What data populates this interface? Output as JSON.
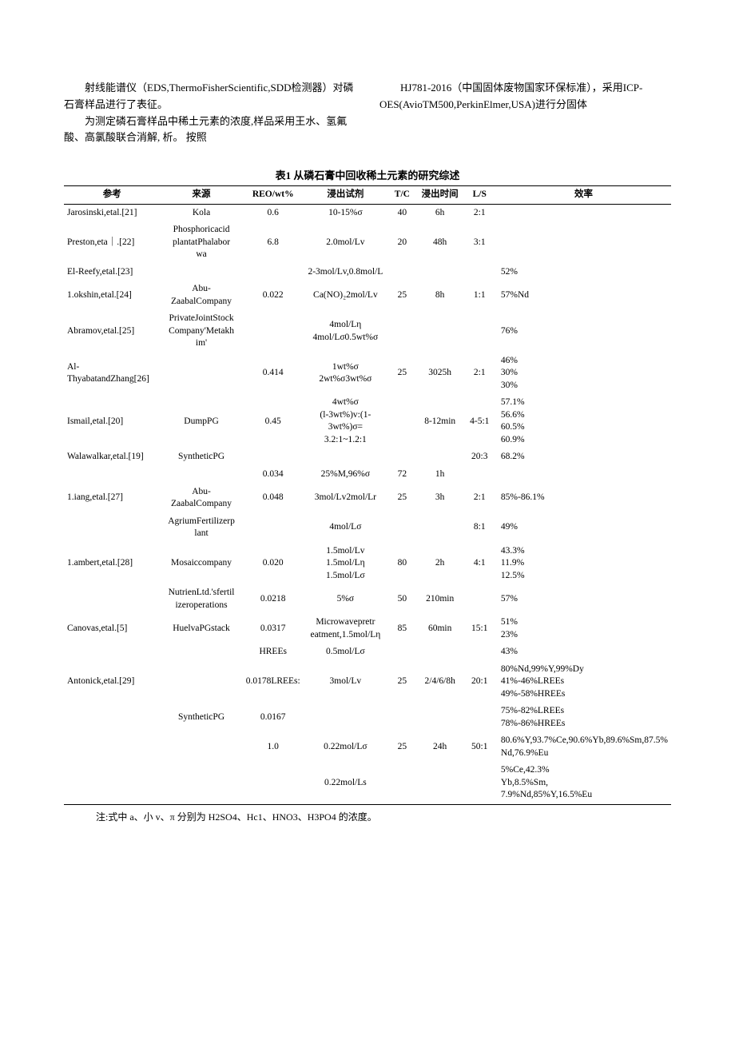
{
  "paragraph_col1_a": "射线能谱仪（EDS,ThermoFisherScientific,SDD检测器）对磷石膏样品进行了表征。",
  "paragraph_col1_b": "为测定磷石膏样品中稀土元素的浓度,样品采用王水、氢氟酸、高氯酸联合消解,",
  "paragraph_col2_a": "HJ781-2016（中国固体废物国家环保标准），采用ICP-OES(AvioTM500,PerkinElmer,USA)进行分固体",
  "paragraph_col1_tail": "析。",
  "paragraph_col1_tail2": "按照",
  "table_caption": "表1 从磷石膏中回收稀土元素的研究综述",
  "headers": [
    "参考",
    "来源",
    "REO/wt%",
    "浸出试剂",
    "T/C",
    "浸出时间",
    "L/S",
    "效率"
  ],
  "rows": [
    {
      "ref": "Jarosinski,etal.[21]",
      "src": "Kola",
      "reo": "0.6",
      "reagent": "10-15%σ",
      "tc": "40",
      "time": "6h",
      "ls": "2:1",
      "eff": ""
    },
    {
      "ref": "Preston,eta｜.[22]",
      "src": "Phosphoricacid plantatPhalabor wa",
      "reo": "6.8",
      "reagent": "2.0mol/Lv",
      "tc": "20",
      "time": "48h",
      "ls": "3:1",
      "eff": ""
    },
    {
      "ref": "El-Reefy,etal.[23]",
      "src": "",
      "reo": "",
      "reagent": "2-3mol/Lv,0.8mol/L",
      "tc": "",
      "time": "",
      "ls": "",
      "eff": "52%"
    },
    {
      "ref": "1.okshin,etal.[24]",
      "src": "Abu-ZaabalCompany",
      "reo": "0.022",
      "reagent": "Ca(NO)₂2mol/Lv",
      "tc": "25",
      "time": "8h",
      "ls": "1:1",
      "eff": "57%Nd"
    },
    {
      "ref": "Abramov,etal.[25]",
      "src": "PrivateJointStock Company'Metakh im'",
      "reo": "",
      "reagent": "4mol/Lη 4mol/Lσ0.5wt%σ",
      "tc": "",
      "time": "",
      "ls": "",
      "eff": "76%"
    },
    {
      "ref": "Al-ThyabatandZhang[26]",
      "src": "",
      "reo": "0.414",
      "reagent": "1wt%σ 2wt%σ3wt%σ",
      "tc": "25",
      "time": "3025h",
      "ls": "2:1",
      "eff": "46% 30% 30%"
    },
    {
      "ref": "Ismail,etal.[20]",
      "src": "DumpPG",
      "reo": "0.45",
      "reagent": "4wt%σ (l-3wt%)v:(1-3wt%)σ= 3.2:1~1.2:1",
      "tc": "",
      "time": "8-12min",
      "ls": "4-5:1",
      "eff": "57.1% 56.6% 60.5% 60.9%"
    },
    {
      "ref": "Walawalkar,etal.[19]",
      "src": "SyntheticPG",
      "reo": "",
      "reagent": "",
      "tc": "",
      "time": "",
      "ls": "20:3",
      "eff": "68.2%"
    },
    {
      "ref": "",
      "src": "",
      "reo": "0.034",
      "reagent": "25%M,96%σ",
      "tc": "72",
      "time": "1h",
      "ls": "",
      "eff": ""
    },
    {
      "ref": "1.iang,etal.[27]",
      "src": "Abu-ZaabalCompany",
      "reo": "0.048",
      "reagent": "3mol/Lv2mol/Lr",
      "tc": "25",
      "time": "3h",
      "ls": "2:1",
      "eff": "85%-86.1%"
    },
    {
      "ref": "",
      "src": "AgriumFertilizerp lant",
      "reo": "",
      "reagent": "4mol/Lσ",
      "tc": "",
      "time": "",
      "ls": "8:1",
      "eff": "49%"
    },
    {
      "ref": "1.ambert,etal.[28]",
      "src": "Mosaiccompany",
      "reo": "0.020",
      "reagent": "1.5mol/Lv 1.5mol/Lη 1.5mol/Lσ",
      "tc": "80",
      "time": "2h",
      "ls": "4:1",
      "eff": "43.3% 11.9% 12.5%"
    },
    {
      "ref": "",
      "src": "NutrienLtd.'sfertil izeroperations",
      "reo": "0.0218",
      "reagent": "5%σ",
      "tc": "50",
      "time": "210min",
      "ls": "",
      "eff": "57%"
    },
    {
      "ref": "Canovas,etal.[5]",
      "src": "HuelvaPGstack",
      "reo": "0.0317",
      "reagent": "Microwavepretr eatment,1.5mol/Lη",
      "tc": "85",
      "time": "60min",
      "ls": "15:1",
      "eff": "51% 23%"
    },
    {
      "ref": "",
      "src": "",
      "reo": "HREEs",
      "reagent": "0.5mol/Lσ",
      "tc": "",
      "time": "",
      "ls": "",
      "eff": "43%"
    },
    {
      "ref": "Antonick,etal.[29]",
      "src": "",
      "reo": "0.0178LREEs:",
      "reagent": "3mol/Lv",
      "tc": "25",
      "time": "2/4/6/8h",
      "ls": "20:1",
      "eff": "80%Nd,99%Y,99%Dy 41%-46%LREEs 49%-58%HREEs"
    },
    {
      "ref": "",
      "src": "SyntheticPG",
      "reo": "0.0167",
      "reagent": "",
      "tc": "",
      "time": "",
      "ls": "",
      "eff": "75%-82%LREEs 78%-86%HREEs"
    },
    {
      "ref": "",
      "src": "",
      "reo": "1.0",
      "reagent": "0.22mol/Lσ",
      "tc": "25",
      "time": "24h",
      "ls": "50:1",
      "eff": "80.6%Y,93.7%Ce,90.6%Yb,89.6%Sm,87.5% Nd,76.9%Eu"
    },
    {
      "ref": "",
      "src": "",
      "reo": "",
      "reagent": "0.22mol/Ls",
      "tc": "",
      "time": "",
      "ls": "",
      "eff": "5%Ce,42.3% Yb,8.5%Sm, 7.9%Nd,85%Y,16.5%Eu"
    }
  ],
  "footnote": "注:式中 a、小 v、π 分别为 H2SO4、Hc1、HNO3、H3PO4 的浓度。"
}
